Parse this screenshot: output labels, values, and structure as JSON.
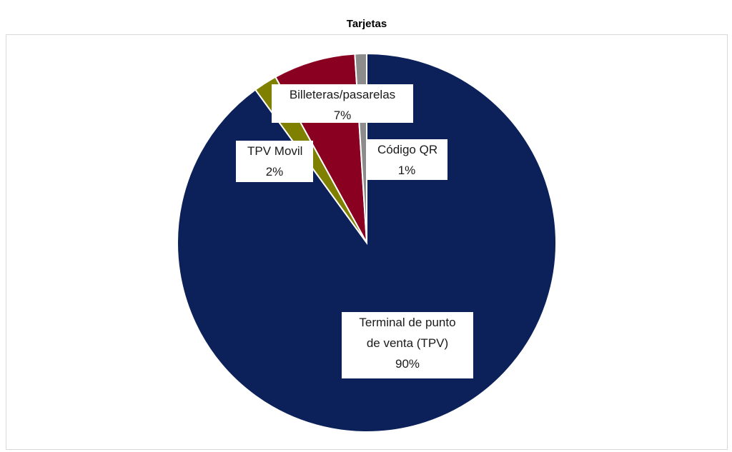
{
  "chart_data": {
    "type": "pie",
    "title": "Tarjetas",
    "categories": [
      "Terminal de punto de venta (TPV)",
      "TPV Movil",
      "Billeteras/pasarelas",
      "Código QR"
    ],
    "values": [
      90,
      2,
      7,
      1
    ],
    "value_labels": [
      "90%",
      "2%",
      "7%",
      "1%"
    ],
    "colors": [
      "#0c2159",
      "#7f7f00",
      "#8a0021",
      "#8c8c8c"
    ]
  }
}
